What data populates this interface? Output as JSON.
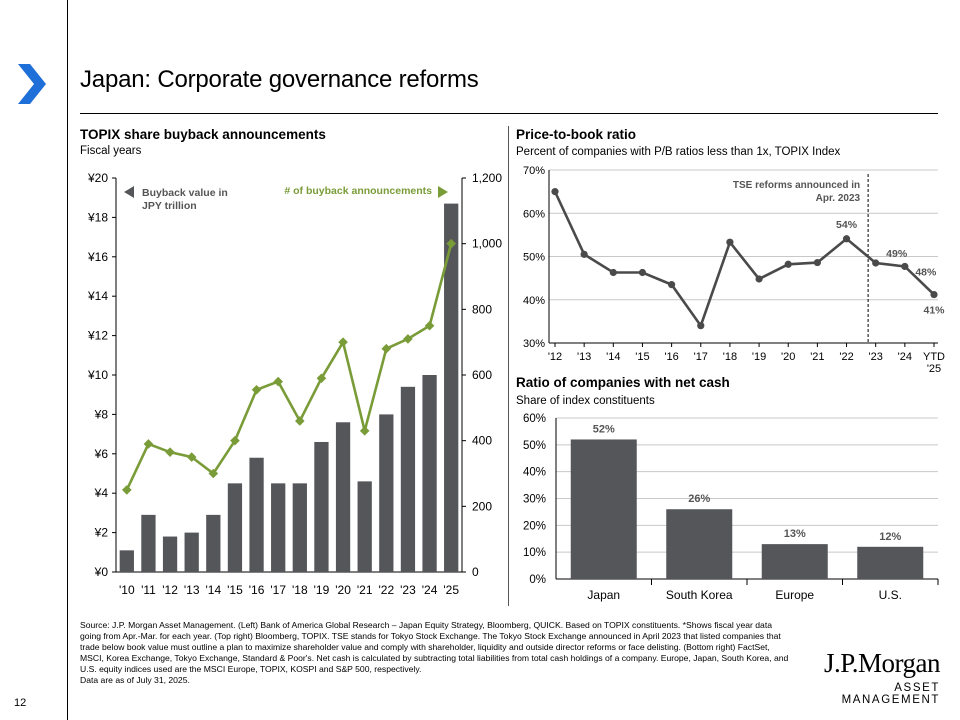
{
  "page": {
    "title": "Japan: Corporate governance reforms",
    "page_number": "12",
    "source_note": "Source: J.P. Morgan Asset Management. (Left) Bank of America Global Research – Japan Equity Strategy, Bloomberg, QUICK. Based on TOPIX constituents. *Shows fiscal year data going from Apr.-Mar. for each year. (Top right) Bloomberg, TOPIX. TSE stands for Tokyo Stock Exchange. The Tokyo Stock Exchange announced in April 2023 that listed companies that trade below book value must outline a plan to maximize shareholder value and comply with shareholder, liquidity and outside director reforms or face delisting. (Bottom right) FactSet, MSCI, Korea Exchange, Tokyo Exchange, Standard & Poor's. Net cash is calculated by subtracting total liabilities from total cash holdings of a company. Europe, Japan, South Korea, and U.S. equity indices used are the MSCI Europe, TOPIX, KOSPI and S&P 500, respectively.",
    "data_date": "Data are as of July 31, 2025.",
    "logo": {
      "line1": "J.P.Morgan",
      "line2": "ASSET MANAGEMENT"
    }
  },
  "colors": {
    "bar": "#54565a",
    "line_green": "#7a9c38",
    "line_gray": "#4a4a4a",
    "grid": "#c8c8c8"
  },
  "chart_data": [
    {
      "id": "buyback",
      "type": "bar+line",
      "title": "TOPIX share buyback announcements",
      "subtitle": "Fiscal years",
      "categories": [
        "'10",
        "'11",
        "'12",
        "'13",
        "'14",
        "'15",
        "'16",
        "'17",
        "'18",
        "'19",
        "'20",
        "'21",
        "'22",
        "'23",
        "'24",
        "'25"
      ],
      "series": [
        {
          "name": "Buyback value in JPY trillion",
          "type": "bar",
          "axis": "left",
          "values": [
            1.1,
            2.9,
            1.8,
            2.0,
            2.9,
            4.5,
            5.8,
            4.5,
            4.5,
            6.6,
            7.6,
            4.6,
            8.0,
            9.4,
            10.0,
            18.7
          ]
        },
        {
          "name": "# of buyback announcements",
          "type": "line",
          "axis": "right",
          "values": [
            250,
            390,
            365,
            350,
            300,
            400,
            555,
            580,
            460,
            590,
            700,
            430,
            680,
            710,
            750,
            1000
          ]
        }
      ],
      "left_axis": {
        "min": 0,
        "max": 20,
        "step": 2,
        "prefix": "¥",
        "tick_labels": [
          "¥0",
          "¥2",
          "¥4",
          "¥6",
          "¥8",
          "¥10",
          "¥12",
          "¥14",
          "¥16",
          "¥18",
          "¥20"
        ]
      },
      "right_axis": {
        "min": 0,
        "max": 1200,
        "step": 200,
        "tick_labels": [
          "0",
          "200",
          "400",
          "600",
          "800",
          "1,000",
          "1,200"
        ]
      },
      "legend": {
        "left_label": "Buyback value in JPY trillion",
        "right_label": "# of buyback announcements",
        "placement": "top"
      }
    },
    {
      "id": "pb",
      "type": "line",
      "title": "Price-to-book ratio",
      "subtitle": "Percent of companies with P/B ratios less than 1x, TOPIX Index",
      "categories": [
        "'12",
        "'13",
        "'14",
        "'15",
        "'16",
        "'17",
        "'18",
        "'19",
        "'20",
        "'21",
        "'22",
        "'23",
        "'24",
        "YTD '25"
      ],
      "values": [
        65,
        50.5,
        46.3,
        46.3,
        43.5,
        34,
        53.3,
        44.8,
        48.2,
        48.6,
        54.1,
        48.5,
        47.7,
        41.2
      ],
      "data_labels": {
        "10": "54%",
        "11": "49%",
        "12": "48%",
        "13": "41%"
      },
      "ylim": [
        30,
        70
      ],
      "tick_labels": [
        "30%",
        "40%",
        "50%",
        "60%",
        "70%"
      ],
      "annotation": {
        "text": "TSE reforms announced in Apr. 2023",
        "at_category": "'23"
      }
    },
    {
      "id": "netcash",
      "type": "bar",
      "title": "Ratio of companies with net cash",
      "subtitle": "Share of index constituents",
      "categories": [
        "Japan",
        "South Korea",
        "Europe",
        "U.S."
      ],
      "values": [
        52,
        26,
        13,
        12
      ],
      "data_labels": [
        "52%",
        "26%",
        "13%",
        "12%"
      ],
      "ylim": [
        0,
        60
      ],
      "tick_labels": [
        "0%",
        "10%",
        "20%",
        "30%",
        "40%",
        "50%",
        "60%"
      ]
    }
  ]
}
